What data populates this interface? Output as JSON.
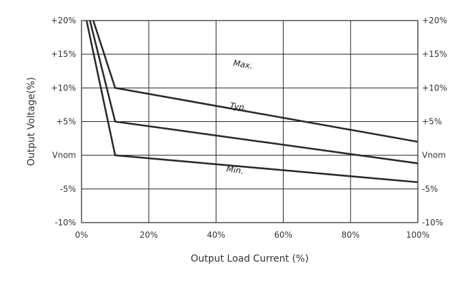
{
  "chart_data": {
    "type": "line",
    "title": "",
    "xlabel": "Output Load Current (%)",
    "ylabel": "Output Voltage(%)",
    "xlim": [
      0,
      100
    ],
    "ylim": [
      -10,
      20
    ],
    "x_ticks": [
      0,
      20,
      40,
      60,
      80,
      100
    ],
    "x_tick_labels": [
      "0%",
      "20%",
      "40%",
      "60%",
      "80%",
      "100%"
    ],
    "y_ticks": [
      20,
      15,
      10,
      5,
      0,
      -5,
      -10
    ],
    "y_tick_labels": [
      "+20%",
      "+15%",
      "+10%",
      "+5%",
      "Vnom",
      "-5%",
      "-10%"
    ],
    "grid": true,
    "series": [
      {
        "name": "Max.",
        "x": [
          3.5,
          10,
          100
        ],
        "y": [
          20,
          10,
          2
        ]
      },
      {
        "name": "Typ.",
        "x": [
          2.5,
          10,
          100
        ],
        "y": [
          20,
          5,
          -1.2
        ]
      },
      {
        "name": "Min.",
        "x": [
          1.5,
          10,
          100
        ],
        "y": [
          20,
          0,
          -4
        ]
      }
    ],
    "series_colors": [
      "#2a2a2a",
      "#2a2a2a",
      "#2a2a2a"
    ]
  }
}
